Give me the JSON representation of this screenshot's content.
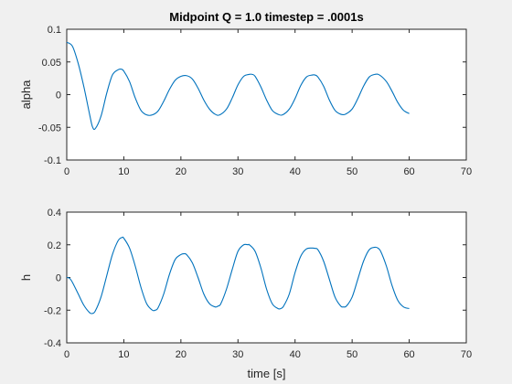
{
  "figure": {
    "background": "#f0f0f0",
    "axes_background": "#ffffff",
    "line_color": "#0072bd"
  },
  "chart_data": [
    {
      "type": "line",
      "title": "Midpoint Q = 1.0 timestep = .0001s",
      "xlabel": "",
      "ylabel": "alpha",
      "xlim": [
        0,
        70
      ],
      "ylim": [
        -0.1,
        0.1
      ],
      "xticks": [
        0,
        10,
        20,
        30,
        40,
        50,
        60,
        70
      ],
      "xtick_labels": [
        "0",
        "10",
        "20",
        "30",
        "40",
        "50",
        "60",
        "70"
      ],
      "yticks": [
        -0.1,
        -0.05,
        0,
        0.05,
        0.1
      ],
      "ytick_labels": [
        "-0.1",
        "-0.05",
        "0",
        "0.05",
        "0.1"
      ],
      "grid": false,
      "series": [
        {
          "x": [
            0,
            1,
            2,
            3,
            4,
            4.5,
            5,
            6,
            7,
            8,
            9,
            9.5,
            10,
            11,
            12,
            13,
            14,
            15,
            16,
            17,
            18,
            19,
            20,
            21,
            22,
            23,
            24,
            25,
            26,
            26.8,
            28,
            29,
            30,
            31,
            32,
            32.5,
            33,
            34,
            35,
            36,
            37,
            37.8,
            39,
            40,
            41,
            42,
            43,
            43.5,
            44,
            45,
            46,
            47,
            48,
            48.8,
            50,
            51,
            52,
            53,
            54,
            54.8,
            56,
            57,
            58,
            59,
            60
          ],
          "y": [
            0.08,
            0.074,
            0.048,
            0.012,
            -0.03,
            -0.049,
            -0.052,
            -0.033,
            0.002,
            0.03,
            0.038,
            0.039,
            0.036,
            0.02,
            -0.005,
            -0.024,
            -0.031,
            -0.031,
            -0.025,
            -0.01,
            0.008,
            0.022,
            0.028,
            0.029,
            0.024,
            0.01,
            -0.008,
            -0.022,
            -0.03,
            -0.031,
            -0.022,
            -0.005,
            0.015,
            0.028,
            0.031,
            0.031,
            0.028,
            0.012,
            -0.008,
            -0.024,
            -0.03,
            -0.031,
            -0.022,
            -0.006,
            0.014,
            0.027,
            0.03,
            0.03,
            0.027,
            0.013,
            -0.008,
            -0.024,
            -0.03,
            -0.03,
            -0.022,
            -0.006,
            0.013,
            0.027,
            0.031,
            0.03,
            0.02,
            0.005,
            -0.012,
            -0.024,
            -0.029
          ]
        }
      ]
    },
    {
      "type": "line",
      "title": "",
      "xlabel": "time [s]",
      "ylabel": "h",
      "xlim": [
        0,
        70
      ],
      "ylim": [
        -0.4,
        0.4
      ],
      "xticks": [
        0,
        10,
        20,
        30,
        40,
        50,
        60,
        70
      ],
      "xtick_labels": [
        "0",
        "10",
        "20",
        "30",
        "40",
        "50",
        "60",
        "70"
      ],
      "yticks": [
        -0.4,
        -0.2,
        0,
        0.2,
        0.4
      ],
      "ytick_labels": [
        "-0.4",
        "-0.2",
        "0",
        "0.2",
        "0.4"
      ],
      "grid": false,
      "series": [
        {
          "x": [
            0,
            0.5,
            1,
            2,
            3,
            4,
            4.5,
            5,
            6,
            7,
            8,
            9,
            9.7,
            10,
            11,
            12,
            13,
            14,
            15,
            15.5,
            16,
            17,
            18,
            19,
            20,
            20.5,
            21,
            22,
            23,
            24,
            25,
            26,
            26.5,
            27,
            28,
            29,
            30,
            31,
            31.8,
            32,
            33,
            34,
            35,
            36,
            37,
            37.5,
            38,
            39,
            40,
            41,
            42,
            43,
            43.5,
            44,
            45,
            46,
            47,
            48,
            48.5,
            49,
            50,
            51,
            52,
            53,
            54,
            54.5,
            55,
            56,
            57,
            58,
            59,
            60
          ],
          "y": [
            0,
            -0.005,
            -0.03,
            -0.1,
            -0.17,
            -0.215,
            -0.22,
            -0.205,
            -0.12,
            0.01,
            0.14,
            0.225,
            0.245,
            0.24,
            0.18,
            0.07,
            -0.06,
            -0.16,
            -0.2,
            -0.2,
            -0.185,
            -0.1,
            0.02,
            0.11,
            0.14,
            0.145,
            0.14,
            0.09,
            0.0,
            -0.1,
            -0.16,
            -0.18,
            -0.175,
            -0.16,
            -0.07,
            0.05,
            0.16,
            0.2,
            0.2,
            0.2,
            0.16,
            0.06,
            -0.07,
            -0.16,
            -0.19,
            -0.19,
            -0.175,
            -0.1,
            0.03,
            0.13,
            0.175,
            0.18,
            0.178,
            0.17,
            0.1,
            -0.01,
            -0.12,
            -0.175,
            -0.18,
            -0.175,
            -0.12,
            -0.01,
            0.1,
            0.17,
            0.185,
            0.18,
            0.16,
            0.07,
            -0.05,
            -0.14,
            -0.18,
            -0.19
          ]
        }
      ]
    }
  ]
}
